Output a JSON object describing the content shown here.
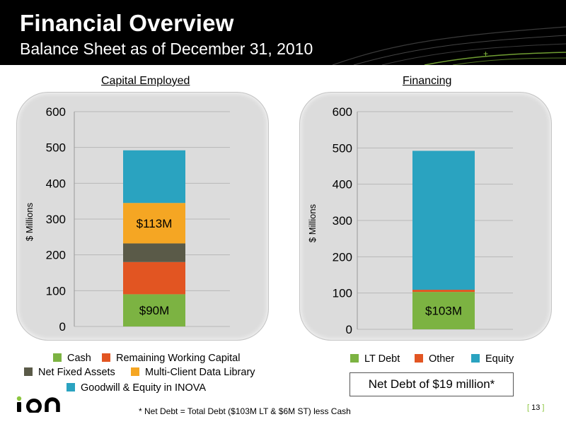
{
  "header": {
    "title": "Financial Overview",
    "subtitle": "Balance Sheet as of December 31, 2010"
  },
  "colors": {
    "cash": "#7cb342",
    "remaining_working_capital": "#e25522",
    "net_fixed_assets": "#5a5a48",
    "multi_client_data_library": "#f5a623",
    "goodwill_equity_inova": "#2aa3c0",
    "lt_debt": "#7cb342",
    "other": "#e25522",
    "equity": "#2aa3c0",
    "brand_green": "#8cc63f"
  },
  "chart_data": [
    {
      "type": "bar",
      "stacked": true,
      "title": "Capital Employed",
      "ylabel": "$ Millions",
      "ylim": [
        0,
        600
      ],
      "yticks": [
        "0",
        "100",
        "200",
        "300",
        "400",
        "500",
        "600"
      ],
      "categories": [
        ""
      ],
      "series": [
        {
          "name": "Cash",
          "values": [
            90
          ],
          "label": "$90M"
        },
        {
          "name": "Remaining Working Capital",
          "values": [
            90
          ]
        },
        {
          "name": "Net Fixed Assets",
          "values": [
            52
          ]
        },
        {
          "name": "Multi-Client Data Library",
          "values": [
            113
          ],
          "label": "$113M"
        },
        {
          "name": "Goodwill & Equity in INOVA",
          "values": [
            147
          ]
        }
      ],
      "legend": [
        {
          "label": "Cash",
          "color_key": "cash"
        },
        {
          "label": "Remaining Working Capital",
          "color_key": "remaining_working_capital"
        },
        {
          "label": "Net Fixed Assets",
          "color_key": "net_fixed_assets"
        },
        {
          "label": "Multi-Client Data Library",
          "color_key": "multi_client_data_library"
        },
        {
          "label": "Goodwill & Equity in INOVA",
          "color_key": "goodwill_equity_inova"
        }
      ],
      "grid": true
    },
    {
      "type": "bar",
      "stacked": true,
      "title": "Financing",
      "ylabel": "$ Millions",
      "ylim": [
        0,
        600
      ],
      "yticks": [
        "0",
        "100",
        "200",
        "300",
        "400",
        "500",
        "600"
      ],
      "categories": [
        ""
      ],
      "series": [
        {
          "name": "LT Debt",
          "values": [
            103
          ],
          "label": "$103M"
        },
        {
          "name": "Other",
          "values": [
            6
          ]
        },
        {
          "name": "Equity",
          "values": [
            383
          ]
        }
      ],
      "legend": [
        {
          "label": "LT Debt",
          "color_key": "lt_debt"
        },
        {
          "label": "Other",
          "color_key": "other"
        },
        {
          "label": "Equity",
          "color_key": "equity"
        }
      ],
      "grid": true
    }
  ],
  "net_debt_box": "Net Debt of $19 million*",
  "footnote": "* Net Debt = Total Debt ($103M LT & $6M ST) less Cash",
  "page": {
    "open": "[ ",
    "number": "13",
    "close": " ]"
  },
  "logo": {
    "text": "ion"
  }
}
